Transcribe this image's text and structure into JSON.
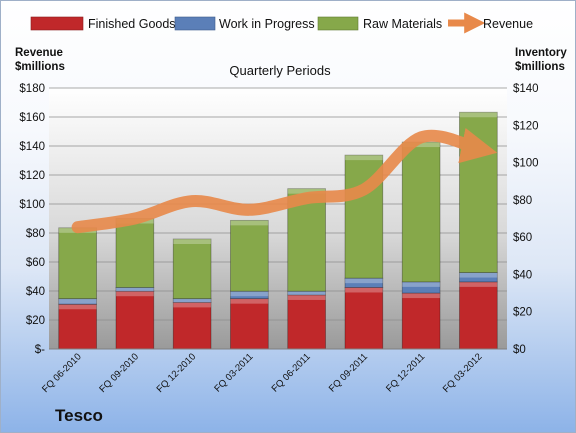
{
  "chart_data": {
    "type": "bar",
    "stacked": true,
    "title": "Quarterly Periods",
    "company": "Tesco",
    "categories": [
      "FQ 06-2010",
      "FQ 09-2010",
      "FQ 12-2010",
      "FQ 03-2011",
      "FQ 06-2011",
      "FQ 09-2011",
      "FQ 12-2011",
      "FQ 03-2012"
    ],
    "left_axis": {
      "label_line1": "Revenue",
      "label_line2": "$millions",
      "ylim": [
        0,
        180
      ],
      "ticks": [
        "$-",
        "$20",
        "$40",
        "$60",
        "$80",
        "$100",
        "$120",
        "$140",
        "$160",
        "$180"
      ]
    },
    "right_axis": {
      "label_line1": "Inventory",
      "label_line2": "$millions",
      "ylim": [
        0,
        140
      ],
      "ticks": [
        "$0",
        "$20",
        "$40",
        "$60",
        "$80",
        "$100",
        "$120",
        "$140"
      ]
    },
    "series": [
      {
        "name": "Finished Goods",
        "axis": "right",
        "color": "#c0282a",
        "values": [
          24,
          31,
          25,
          27,
          29,
          33,
          30,
          36
        ]
      },
      {
        "name": "Work in Progress",
        "axis": "right",
        "color": "#5b7fb8",
        "values": [
          3,
          2,
          2,
          4,
          2,
          5,
          6,
          5
        ]
      },
      {
        "name": "Raw Materials",
        "axis": "right",
        "color": "#86a84a",
        "values": [
          38,
          37,
          32,
          38,
          55,
          66,
          75,
          86
        ]
      },
      {
        "name": "Revenue",
        "axis": "left",
        "type": "line",
        "color": "#e8894a",
        "values": [
          84,
          90,
          102,
          96,
          104,
          110,
          146,
          138
        ]
      }
    ],
    "grid": true,
    "legend": "top"
  }
}
